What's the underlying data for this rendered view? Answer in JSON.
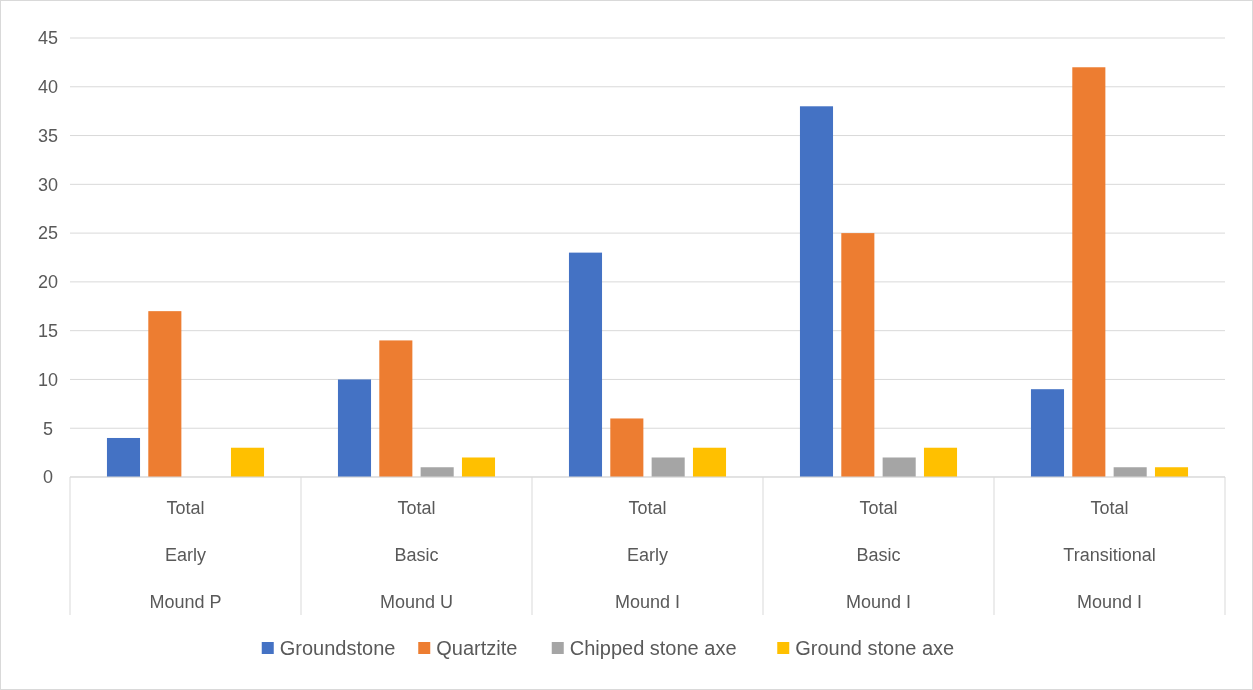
{
  "chart_data": {
    "type": "bar",
    "categories": [
      "Total\nEarly\nMound P",
      "Total\nBasic\nMound U",
      "Total\nEarly\nMound I",
      "Total\nBasic\nMound I",
      "Total\nTransitional\nMound I"
    ],
    "series": [
      {
        "name": "Groundstone",
        "color": "#4472c4",
        "values": [
          4,
          10,
          23,
          38,
          9
        ]
      },
      {
        "name": "Quartzite",
        "color": "#ed7d31",
        "values": [
          17,
          14,
          6,
          25,
          42
        ]
      },
      {
        "name": "Chipped stone axe",
        "color": "#a5a5a5",
        "values": [
          null,
          1,
          2,
          2,
          1
        ]
      },
      {
        "name": "Ground stone axe",
        "color": "#ffc000",
        "values": [
          3,
          2,
          3,
          3,
          1
        ]
      }
    ],
    "ylim": [
      0,
      45
    ],
    "yticks": [
      0,
      5,
      10,
      15,
      20,
      25,
      30,
      35,
      40,
      45
    ],
    "grid": "y",
    "legend": "bottom"
  }
}
